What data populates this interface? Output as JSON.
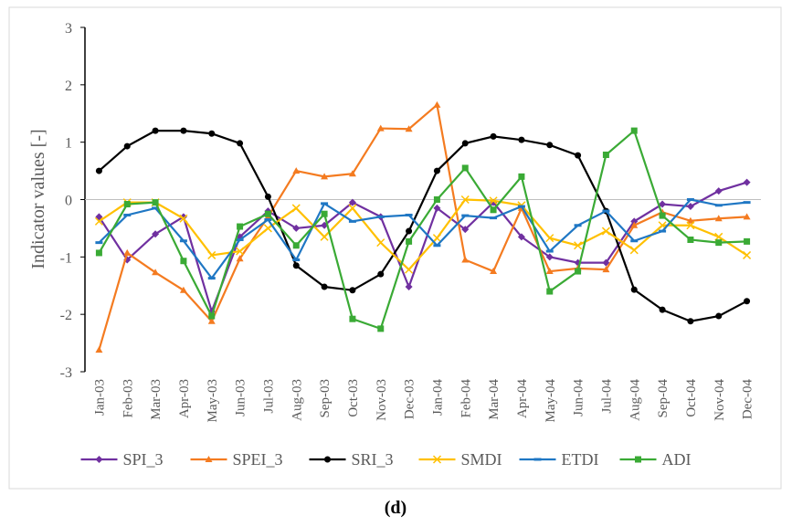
{
  "chart_data": {
    "type": "line",
    "y_label": "Indicator values [-]",
    "caption": "(d)",
    "categories": [
      "Jan-03",
      "Feb-03",
      "Mar-03",
      "Apr-03",
      "May-03",
      "Jun-03",
      "Jul-03",
      "Aug-03",
      "Sep-03",
      "Oct-03",
      "Nov-03",
      "Dec-03",
      "Jan-04",
      "Feb-04",
      "Mar-04",
      "Apr-04",
      "May-04",
      "Jun-04",
      "Jul-04",
      "Aug-04",
      "Sep-04",
      "Oct-04",
      "Nov-04",
      "Dec-04"
    ],
    "ylim": [
      -3,
      3
    ],
    "yticks": [
      -3,
      -2,
      -1,
      0,
      1,
      2,
      3
    ],
    "series": [
      {
        "name": "SPI_3",
        "color": "#7030a0",
        "marker": "diamond",
        "values": [
          -0.3,
          -1.05,
          -0.6,
          -0.3,
          -1.95,
          -0.65,
          -0.2,
          -0.5,
          -0.45,
          -0.05,
          -0.3,
          -1.52,
          -0.15,
          -0.52,
          -0.05,
          -0.65,
          -1.0,
          -1.1,
          -1.1,
          -0.38,
          -0.08,
          -0.12,
          0.15,
          0.3
        ]
      },
      {
        "name": "SPEI_3",
        "color": "#f47b20",
        "marker": "triangle",
        "values": [
          -2.62,
          -0.93,
          -1.27,
          -1.58,
          -2.12,
          -1.03,
          -0.3,
          0.5,
          0.4,
          0.45,
          1.24,
          1.23,
          1.65,
          -1.05,
          -1.25,
          -0.15,
          -1.25,
          -1.2,
          -1.22,
          -0.45,
          -0.22,
          -0.37,
          -0.33,
          -0.3
        ]
      },
      {
        "name": "SRI_3",
        "color": "#000000",
        "marker": "circle",
        "values": [
          0.5,
          0.93,
          1.2,
          1.2,
          1.15,
          0.98,
          0.05,
          -1.15,
          -1.52,
          -1.58,
          -1.3,
          -0.55,
          0.5,
          0.98,
          1.1,
          1.04,
          0.95,
          0.77,
          -0.2,
          -1.57,
          -1.92,
          -2.12,
          -2.03,
          -1.77
        ]
      },
      {
        "name": "SMDI",
        "color": "#ffc000",
        "marker": "x",
        "values": [
          -0.38,
          -0.05,
          -0.05,
          -0.33,
          -0.97,
          -0.9,
          -0.5,
          -0.15,
          -0.65,
          -0.15,
          -0.75,
          -1.22,
          -0.67,
          0.0,
          -0.02,
          -0.1,
          -0.67,
          -0.8,
          -0.55,
          -0.88,
          -0.45,
          -0.45,
          -0.65,
          -0.97
        ]
      },
      {
        "name": "ETDI",
        "color": "#1f77c4",
        "marker": "dash",
        "values": [
          -0.75,
          -0.27,
          -0.15,
          -0.72,
          -1.37,
          -0.7,
          -0.35,
          -1.05,
          -0.07,
          -0.38,
          -0.3,
          -0.27,
          -0.8,
          -0.28,
          -0.32,
          -0.12,
          -0.9,
          -0.45,
          -0.2,
          -0.72,
          -0.55,
          0.0,
          -0.1,
          -0.05
        ]
      },
      {
        "name": "ADI",
        "color": "#3aaa35",
        "marker": "square",
        "values": [
          -0.93,
          -0.08,
          -0.05,
          -1.07,
          -2.03,
          -0.47,
          -0.25,
          -0.8,
          -0.25,
          -2.08,
          -2.25,
          -0.73,
          0.0,
          0.55,
          -0.18,
          0.4,
          -1.6,
          -1.25,
          0.78,
          1.2,
          -0.28,
          -0.7,
          -0.75,
          -0.73
        ]
      }
    ]
  }
}
